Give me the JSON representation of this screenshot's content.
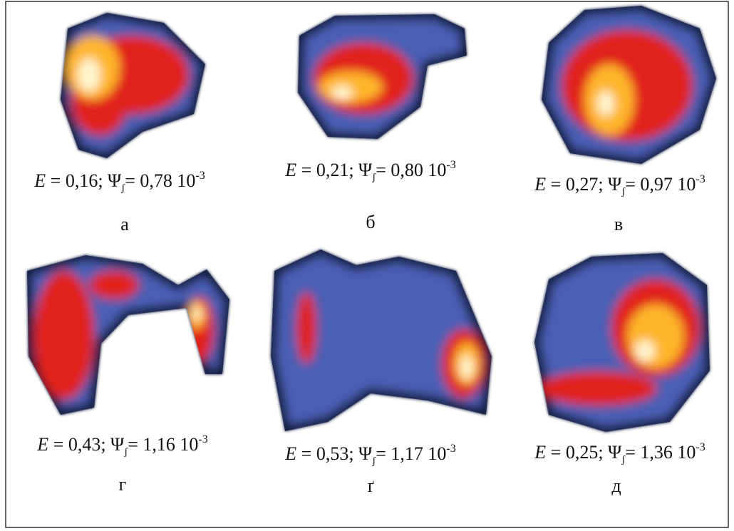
{
  "panels": [
    {
      "caption": {
        "e": "E",
        "eq": " = 0,16; Ψ",
        "sub": "ʃ",
        "rest": "= 0,78 10",
        "sup": "-3"
      },
      "letter": "а"
    },
    {
      "caption": {
        "e": "E",
        "eq": " = 0,21; Ψ",
        "sub": "ʃ",
        "rest": "= 0,80 10",
        "sup": "-3"
      },
      "letter": "б"
    },
    {
      "caption": {
        "e": "E",
        "eq": " = 0,27; Ψ",
        "sub": "ʃ",
        "rest": "= 0,97 10",
        "sup": "-3"
      },
      "letter": "в"
    },
    {
      "caption": {
        "e": "E",
        "eq": " = 0,43; Ψ",
        "sub": "ʃ",
        "rest": "= 1,16 10",
        "sup": "-3"
      },
      "letter": "г"
    },
    {
      "caption": {
        "e": "E",
        "eq": " = 0,53; Ψ",
        "sub": "ʃ",
        "rest": "= 1,17 10",
        "sup": "-3"
      },
      "letter": "ґ"
    },
    {
      "caption": {
        "e": "E",
        "eq": " = 0,25; Ψ",
        "sub": "ʃ",
        "rest": "= 1,36 10",
        "sup": "-3"
      },
      "letter": "д"
    }
  ]
}
